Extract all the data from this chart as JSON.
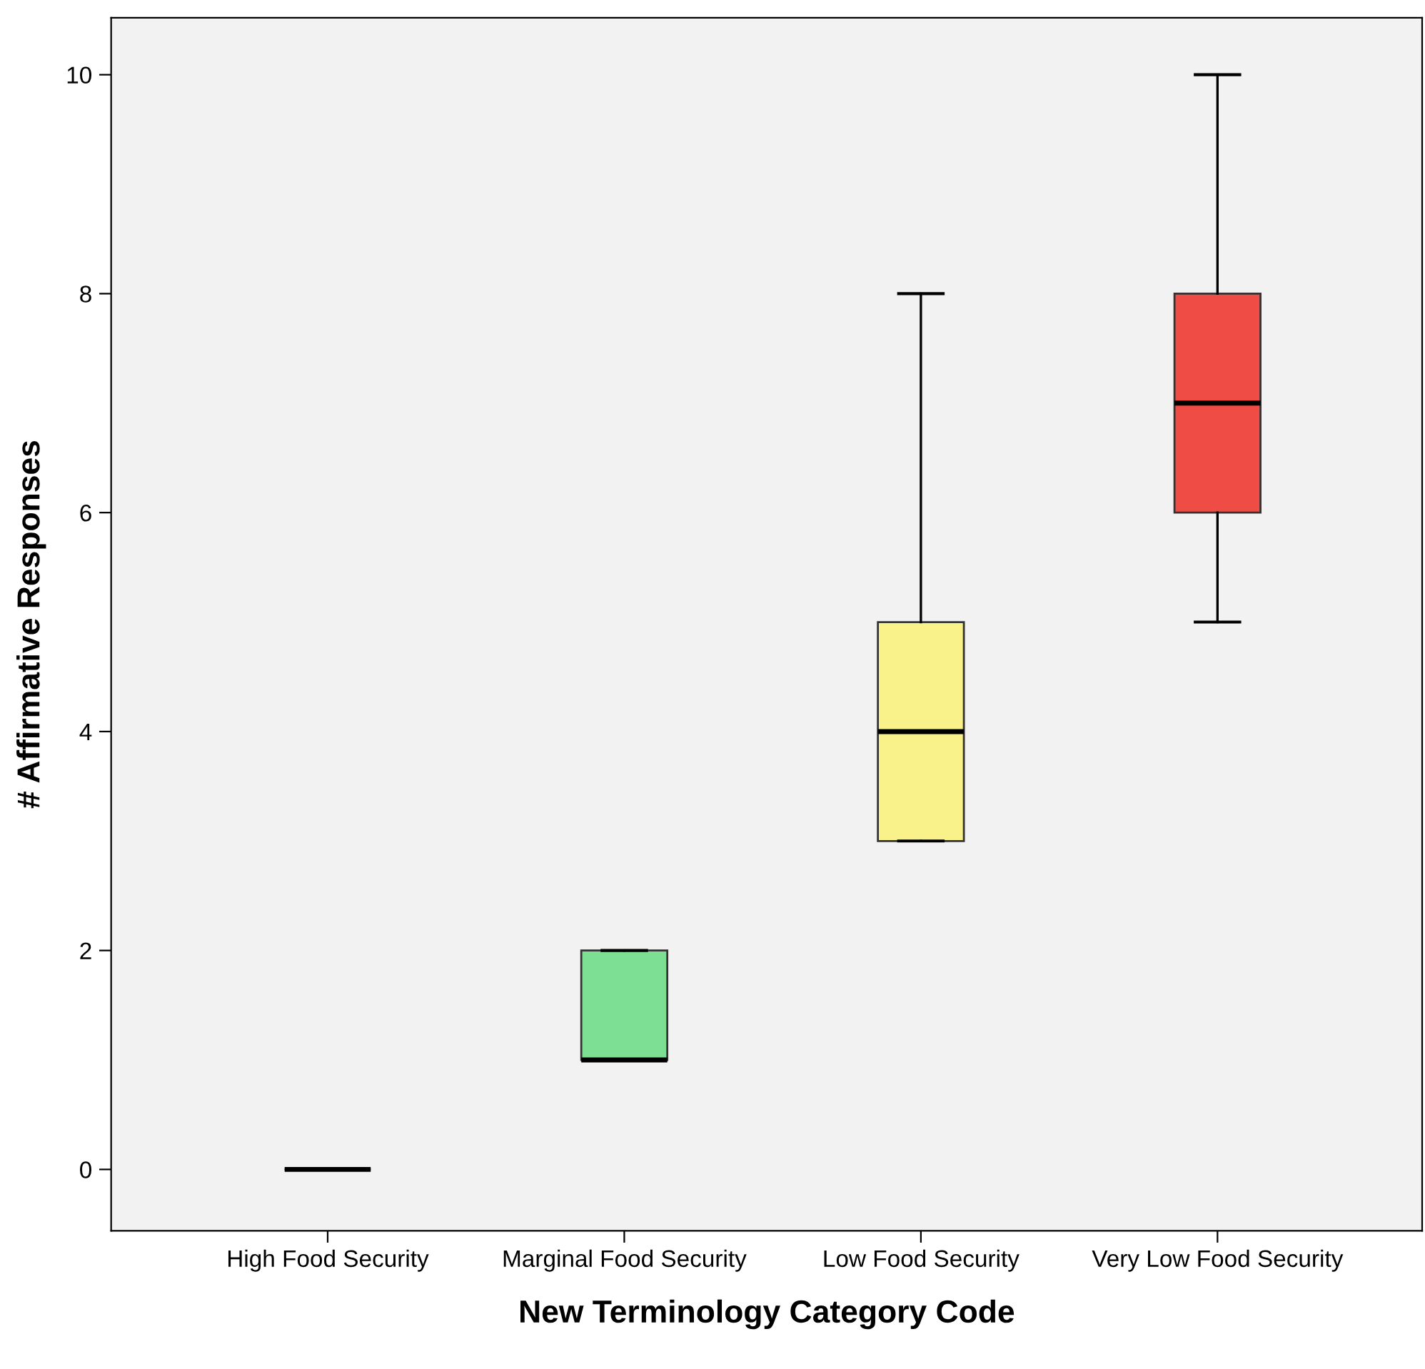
{
  "chart_data": {
    "type": "box",
    "xlabel": "New Terminology Category Code",
    "ylabel": "# Affirmative Responses",
    "categories": [
      "High Food Security",
      "Marginal Food Security",
      "Low Food Security",
      "Very Low Food Security"
    ],
    "boxes": [
      {
        "low": 0,
        "q1": 0,
        "median": 0,
        "q3": 0,
        "high": 0
      },
      {
        "low": 1,
        "q1": 1,
        "median": 1,
        "q3": 2,
        "high": 2
      },
      {
        "low": 3,
        "q1": 3,
        "median": 4,
        "q3": 5,
        "high": 8
      },
      {
        "low": 5,
        "q1": 6,
        "median": 7,
        "q3": 8,
        "high": 10
      }
    ],
    "colors": [
      "#000000",
      "#7ddf93",
      "#f9f18a",
      "#ef4c46"
    ],
    "ylim": [
      -0.56,
      10.52
    ],
    "yticks": [
      0,
      2,
      4,
      6,
      8,
      10
    ],
    "grid": false,
    "legend": false
  }
}
